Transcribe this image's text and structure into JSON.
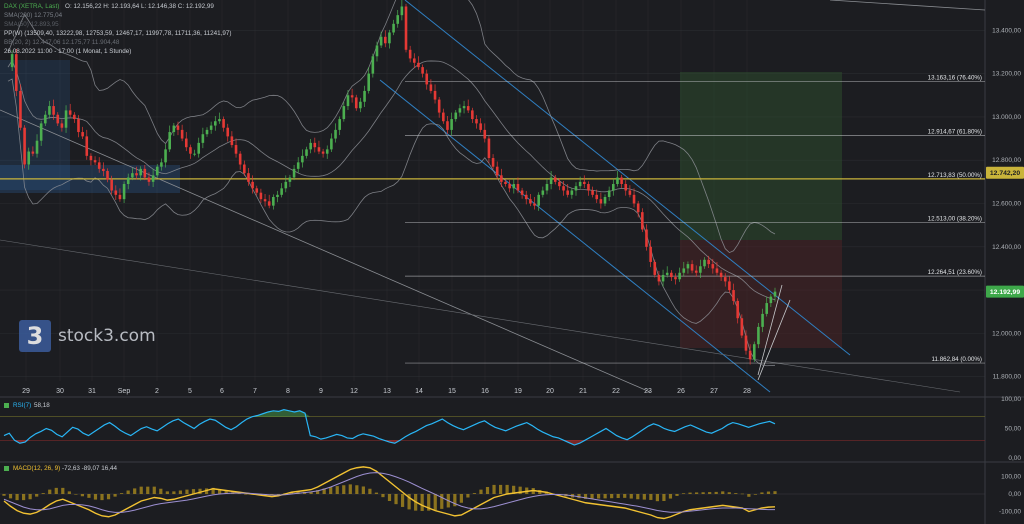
{
  "header": {
    "instrument": "DAX (XETRA, Last)",
    "ohlc": "O: 12.156,22  H: 12.193,64  L: 12.146,38  C: 12.192,99",
    "sma_label": "SMA(200)",
    "sma_value": "12.775,04",
    "sma2_label": "SMA(50)",
    "sma2_value": "12.893,95",
    "pp_label": "PP(W)",
    "pp_values": "(13509,40, 13222,98, 12753,59, 12467,17, 11997,78, 11711,36, 11241,97)",
    "bb_label": "BB(20, 2)",
    "bb_values": "12.447,06  12.175,77  11.904,48",
    "date_label": "26.08.2022 11:00 - 17:00",
    "period_label": "(1 Monat, 1 Stunde)"
  },
  "logo": {
    "mark": "3",
    "text": "stock3.com"
  },
  "colors": {
    "background": "#1c1d21",
    "grid": "#2a2c31",
    "up": "#4caf50",
    "down": "#e53935",
    "fib": "#c7c9cc",
    "fib50": "#c9b43a",
    "channel": "#2f7fc1",
    "bollinger": "#8e9196",
    "rsi": "#29b6f6",
    "macd": "#f2c232",
    "signal": "#9c8fd1",
    "price_tag": "#3ea84a",
    "fib_tag": "#c9b43a"
  },
  "chart_data": [
    {
      "type": "candlestick",
      "title": "DAX (XETRA, Last)",
      "x_labels": [
        "29",
        "30",
        "31",
        "Sep",
        "2",
        "5",
        "6",
        "7",
        "8",
        "9",
        "12",
        "13",
        "14",
        "15",
        "16",
        "19",
        "20",
        "21",
        "22",
        "23",
        "26",
        "27",
        "28"
      ],
      "y_ticks": [
        13400,
        13200,
        13000,
        12800,
        12600,
        12400,
        12200,
        12000,
        11800
      ],
      "y_tick_labels": [
        "13.400,00",
        "13.200,00",
        "13.000,00",
        "12.800,00",
        "12.600,00",
        "12.400,00",
        "12.200,00",
        "12.000,00",
        "11.800,00"
      ],
      "ylim": [
        11780,
        13540
      ],
      "fibonacci": [
        {
          "value": 13163.16,
          "label": "13.163,16 (76.40%)"
        },
        {
          "value": 12914.67,
          "label": "12.914,67 (61.80%)"
        },
        {
          "value": 12713.83,
          "label": "12.713,83 (50.00%)"
        },
        {
          "value": 12513.0,
          "label": "12.513,00 (38.20%)"
        },
        {
          "value": 12264.51,
          "label": "12.264,51 (23.60%)"
        },
        {
          "value": 11862.84,
          "label": "11.862,84 (0.00%)"
        }
      ],
      "price_tags": [
        {
          "value": 12742.2,
          "label": "12.742,20"
        },
        {
          "value": 12192.99,
          "label": "12.192,99"
        }
      ],
      "candles": [
        13230,
        13290,
        13120,
        12950,
        12780,
        12840,
        12830,
        12890,
        12970,
        13010,
        13050,
        13010,
        12970,
        12950,
        13030,
        13010,
        12990,
        12930,
        12910,
        12820,
        12800,
        12790,
        12760,
        12750,
        12710,
        12660,
        12640,
        12620,
        12690,
        12720,
        12740,
        12730,
        12760,
        12720,
        12700,
        12730,
        12770,
        12790,
        12850,
        12930,
        12960,
        12940,
        12900,
        12860,
        12830,
        12830,
        12880,
        12920,
        12940,
        12960,
        12980,
        12990,
        12950,
        12910,
        12870,
        12830,
        12780,
        12740,
        12700,
        12670,
        12650,
        12620,
        12610,
        12590,
        12630,
        12640,
        12670,
        12700,
        12720,
        12760,
        12790,
        12820,
        12850,
        12880,
        12860,
        12840,
        12830,
        12850,
        12900,
        12940,
        12990,
        13050,
        13100,
        13090,
        13040,
        13070,
        13120,
        13200,
        13280,
        13330,
        13370,
        13340,
        13390,
        13430,
        13470,
        13510,
        13310,
        13270,
        13250,
        13230,
        13200,
        13150,
        13120,
        13080,
        13020,
        12980,
        12940,
        12990,
        13020,
        13040,
        13050,
        13030,
        12990,
        12970,
        12940,
        12900,
        12810,
        12770,
        12730,
        12700,
        12690,
        12670,
        12690,
        12660,
        12640,
        12620,
        12600,
        12590,
        12640,
        12660,
        12690,
        12720,
        12700,
        12680,
        12660,
        12640,
        12660,
        12680,
        12700,
        12690,
        12660,
        12640,
        12620,
        12600,
        12630,
        12660,
        12690,
        12720,
        12690,
        12660,
        12640,
        12600,
        12560,
        12480,
        12400,
        12330,
        12270,
        12240,
        12270,
        12280,
        12260,
        12250,
        12280,
        12300,
        12320,
        12290,
        12280,
        12310,
        12340,
        12320,
        12300,
        12280,
        12260,
        12240,
        12200,
        12150,
        12070,
        11990,
        11920,
        11880,
        11950,
        12030,
        12090,
        12140,
        12170,
        12193
      ]
    },
    {
      "type": "line",
      "title": "RSI(7)",
      "value_label": "58,18",
      "y_tick_labels": [
        "100,00",
        "50,00",
        "0,00"
      ],
      "ylim": [
        0,
        100
      ],
      "series": [
        {
          "name": "RSI(7)",
          "values": [
            38,
            42,
            30,
            25,
            27,
            35,
            41,
            45,
            50,
            47,
            40,
            36,
            44,
            52,
            49,
            42,
            38,
            44,
            50,
            56,
            60,
            54,
            47,
            42,
            38,
            44,
            50,
            53,
            49,
            46,
            52,
            58,
            63,
            66,
            60,
            55,
            50,
            57,
            62,
            66,
            64,
            58,
            52,
            48,
            53,
            60,
            66,
            70,
            72,
            75,
            78,
            80,
            79,
            82,
            80,
            78,
            80,
            76,
            38,
            36,
            32,
            34,
            37,
            40,
            38,
            34,
            33,
            38,
            41,
            39,
            37,
            33,
            30,
            27,
            25,
            30,
            36,
            41,
            45,
            50,
            55,
            58,
            62,
            66,
            60,
            55,
            51,
            48,
            52,
            56,
            60,
            63,
            57,
            52,
            49,
            46,
            50,
            54,
            57,
            60,
            55,
            49,
            44,
            40,
            36,
            34,
            30,
            26,
            22,
            25,
            30,
            35,
            40,
            45,
            50,
            44,
            38,
            34,
            31,
            36,
            42,
            48,
            54,
            58,
            55,
            50,
            47,
            45,
            49,
            53,
            56,
            52,
            48,
            44,
            42,
            46,
            50,
            56,
            60,
            58,
            55,
            52,
            55,
            58,
            60,
            62,
            58
          ]
        }
      ]
    },
    {
      "type": "line",
      "title": "MACD(12, 26, 9)",
      "values_label": "-72,63  -89,07  16,44",
      "y_tick_labels": [
        "100,00",
        "0,00",
        "-100,00"
      ],
      "ylim": [
        -160,
        160
      ],
      "series": [
        {
          "name": "MACD",
          "values": [
            -40,
            -70,
            -95,
            -110,
            -115,
            -105,
            -85,
            -60,
            -40,
            -30,
            -45,
            -60,
            -75,
            -90,
            -110,
            -125,
            -130,
            -120,
            -100,
            -80,
            -60,
            -40,
            -30,
            -20,
            -25,
            -35,
            -30,
            -20,
            -10,
            0,
            10,
            20,
            30,
            25,
            20,
            15,
            10,
            5,
            0,
            -5,
            -10,
            -15,
            -10,
            0,
            10,
            15,
            20,
            25,
            40,
            60,
            80,
            100,
            120,
            140,
            150,
            155,
            150,
            130,
            100,
            70,
            40,
            10,
            -20,
            -45,
            -65,
            -80,
            -95,
            -105,
            -115,
            -125,
            -120,
            -100,
            -80,
            -60,
            -40,
            -20,
            -10,
            0,
            5,
            10,
            15,
            20,
            15,
            10,
            0,
            -10,
            -20,
            -30,
            -40,
            -50,
            -55,
            -60,
            -65,
            -70,
            -75,
            -80,
            -90,
            -100,
            -110,
            -120,
            -135,
            -140,
            -130,
            -115,
            -100,
            -90,
            -85,
            -80,
            -75,
            -70,
            -65,
            -70,
            -75,
            -80,
            -100,
            -90,
            -80,
            -75,
            -73
          ]
        },
        {
          "name": "Signal",
          "values": [
            -30,
            -45,
            -60,
            -75,
            -85,
            -90,
            -90,
            -85,
            -75,
            -65,
            -60,
            -60,
            -62,
            -68,
            -78,
            -90,
            -100,
            -105,
            -105,
            -100,
            -92,
            -82,
            -72,
            -62,
            -55,
            -50,
            -45,
            -40,
            -35,
            -28,
            -20,
            -12,
            -5,
            0,
            3,
            5,
            5,
            5,
            3,
            0,
            -3,
            -6,
            -6,
            -4,
            0,
            4,
            8,
            12,
            18,
            28,
            40,
            55,
            70,
            85,
            100,
            112,
            120,
            122,
            118,
            110,
            98,
            84,
            68,
            50,
            32,
            15,
            -2,
            -20,
            -38,
            -55,
            -70,
            -80,
            -85,
            -85,
            -80,
            -72,
            -62,
            -52,
            -42,
            -32,
            -22,
            -14,
            -8,
            -4,
            -2,
            -3,
            -6,
            -10,
            -16,
            -22,
            -28,
            -34,
            -40,
            -46,
            -52,
            -58,
            -64,
            -70,
            -78,
            -86,
            -94,
            -100,
            -104,
            -104,
            -102,
            -98,
            -94,
            -90,
            -86,
            -82,
            -80,
            -80,
            -80,
            -82,
            -84,
            -86,
            -88,
            -89,
            -89
          ]
        }
      ],
      "histogram": [
        -10,
        -25,
        -35,
        -35,
        -30,
        -15,
        5,
        25,
        35,
        35,
        15,
        0,
        -13,
        -22,
        -32,
        -35,
        -30,
        -15,
        5,
        20,
        32,
        42,
        42,
        42,
        30,
        15,
        15,
        20,
        25,
        28,
        30,
        32,
        35,
        25,
        17,
        10,
        5,
        0,
        -3,
        -5,
        -7,
        -9,
        -4,
        4,
        10,
        11,
        12,
        13,
        22,
        32,
        40,
        45,
        50,
        55,
        50,
        43,
        30,
        8,
        -18,
        -40,
        -58,
        -74,
        -88,
        -95,
        -97,
        -95,
        -93,
        -85,
        -77,
        -70,
        -50,
        -20,
        5,
        25,
        40,
        52,
        52,
        52,
        47,
        42,
        37,
        34,
        23,
        14,
        2,
        -7,
        -14,
        -20,
        -24,
        -28,
        -27,
        -26,
        -25,
        -24,
        -23,
        -22,
        -26,
        -30,
        -32,
        -34,
        -41,
        -40,
        -26,
        -11,
        4,
        8,
        9,
        10,
        11,
        12,
        15,
        10,
        5,
        2,
        -16,
        -4,
        9,
        14,
        16
      ]
    }
  ]
}
